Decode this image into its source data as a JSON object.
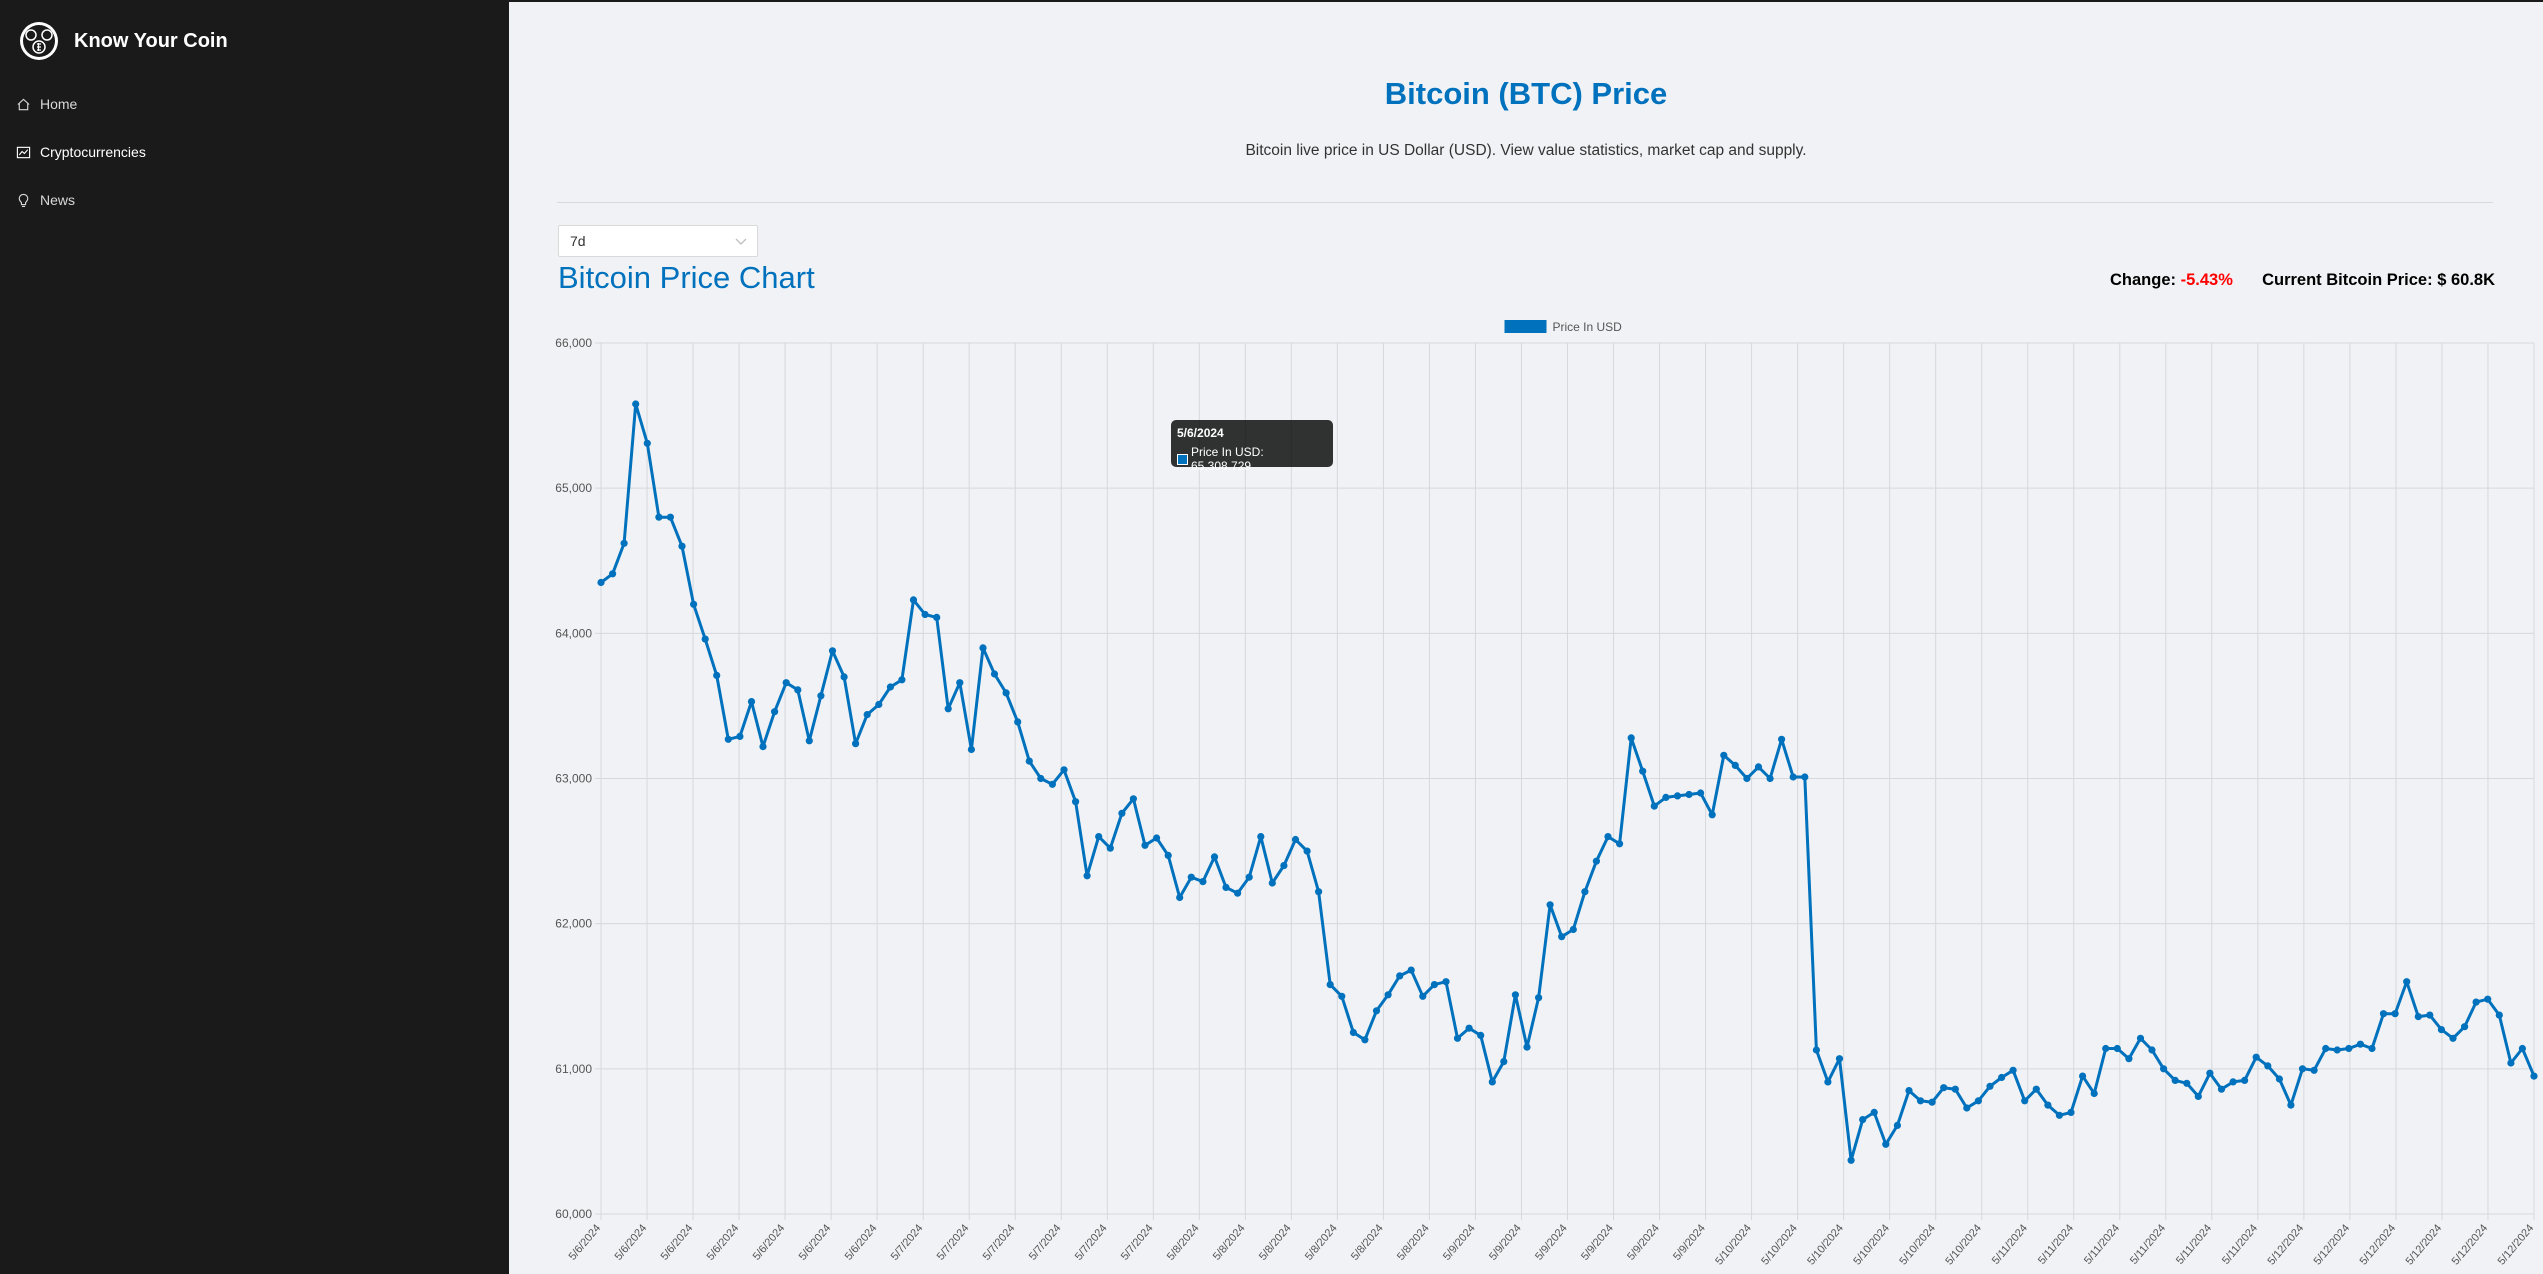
{
  "app": {
    "title": "Know Your Coin",
    "logo_icon": "coin-logo-icon"
  },
  "sidebar": {
    "items": [
      {
        "label": "Home",
        "icon": "home-icon",
        "active": false
      },
      {
        "label": "Cryptocurrencies",
        "icon": "fund-icon",
        "active": true
      },
      {
        "label": "News",
        "icon": "bulb-icon",
        "active": false
      }
    ]
  },
  "page": {
    "title": "Bitcoin (BTC) Price",
    "subtitle": "Bitcoin live price in US Dollar (USD). View value statistics, market cap and supply."
  },
  "period_select": {
    "value": "7d"
  },
  "chart_header": {
    "title": "Bitcoin Price Chart",
    "change_label": "Change:",
    "change_value": "-5.43%",
    "current_label": "Current Bitcoin Price:",
    "current_value": "$ 60.8K"
  },
  "tooltip": {
    "title": "5/6/2024",
    "label": "Price In USD: 65,308.729"
  },
  "colors": {
    "accent": "#0071bd",
    "sidebar_bg": "#1a1a1a",
    "negative": "#ff0000",
    "page_bg": "#f0f2f5"
  },
  "chart_data": {
    "type": "line",
    "legend": "Price In USD",
    "legend_position": "top-center",
    "grid": true,
    "ylim": [
      60000,
      66000
    ],
    "y_ticks": [
      "60,000",
      "61,000",
      "62,000",
      "63,000",
      "64,000",
      "65,000",
      "66,000"
    ],
    "x_tick_labels": [
      "5/6/2024",
      "5/6/2024",
      "5/6/2024",
      "5/6/2024",
      "5/6/2024",
      "5/6/2024",
      "5/6/2024",
      "5/7/2024",
      "5/7/2024",
      "5/7/2024",
      "5/7/2024",
      "5/7/2024",
      "5/7/2024",
      "5/8/2024",
      "5/8/2024",
      "5/8/2024",
      "5/8/2024",
      "5/8/2024",
      "5/8/2024",
      "5/9/2024",
      "5/9/2024",
      "5/9/2024",
      "5/9/2024",
      "5/9/2024",
      "5/9/2024",
      "5/10/2024",
      "5/10/2024",
      "5/10/2024",
      "5/10/2024",
      "5/10/2024",
      "5/10/2024",
      "5/11/2024",
      "5/11/2024",
      "5/11/2024",
      "5/11/2024",
      "5/11/2024",
      "5/11/2024",
      "5/12/2024",
      "5/12/2024",
      "5/12/2024",
      "5/12/2024",
      "5/12/2024",
      "5/12/2024"
    ],
    "values": [
      64350,
      64410,
      64620,
      65580,
      65309,
      64800,
      64800,
      64600,
      64200,
      63960,
      63710,
      63270,
      63290,
      63530,
      63220,
      63460,
      63660,
      63610,
      63260,
      63570,
      63880,
      63700,
      63240,
      63440,
      63510,
      63630,
      63680,
      64230,
      64130,
      64110,
      63480,
      63660,
      63200,
      63900,
      63720,
      63590,
      63390,
      63120,
      63000,
      62960,
      63060,
      62840,
      62330,
      62600,
      62520,
      62760,
      62860,
      62540,
      62590,
      62470,
      62180,
      62320,
      62290,
      62460,
      62250,
      62210,
      62320,
      62600,
      62280,
      62400,
      62580,
      62500,
      62220,
      61580,
      61500,
      61250,
      61200,
      61400,
      61510,
      61640,
      61680,
      61500,
      61580,
      61600,
      61210,
      61280,
      61230,
      60910,
      61050,
      61510,
      61150,
      61490,
      62130,
      61910,
      61960,
      62220,
      62430,
      62600,
      62550,
      63280,
      63050,
      62810,
      62870,
      62880,
      62890,
      62900,
      62750,
      63160,
      63090,
      63000,
      63080,
      63000,
      63270,
      63010,
      63010,
      61130,
      60910,
      61070,
      60370,
      60650,
      60700,
      60480,
      60610,
      60850,
      60780,
      60770,
      60870,
      60860,
      60730,
      60780,
      60880,
      60940,
      60990,
      60780,
      60860,
      60750,
      60680,
      60700,
      60950,
      60830,
      61140,
      61140,
      61070,
      61210,
      61130,
      61000,
      60920,
      60900,
      60810,
      60970,
      60860,
      60910,
      60920,
      61080,
      61020,
      60930,
      60750,
      61000,
      60990,
      61140,
      61130,
      61140,
      61170,
      61140,
      61380,
      61380,
      61600,
      61360,
      61370,
      61270,
      61210,
      61290,
      61460,
      61480,
      61370,
      61040,
      61140,
      60950
    ]
  }
}
